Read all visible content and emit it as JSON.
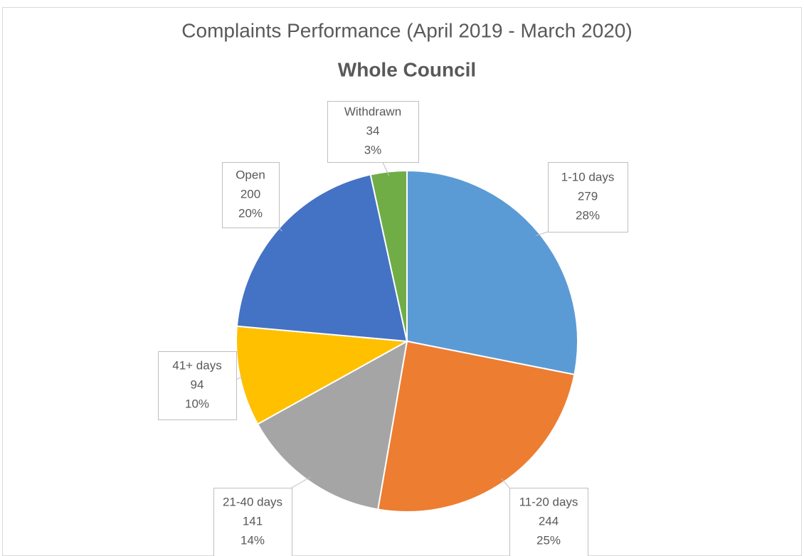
{
  "chart_data": {
    "type": "pie",
    "title": "Complaints Performance (April 2019 - March 2020)",
    "subtitle": "Whole Council",
    "categories": [
      "1-10 days",
      "11-20 days",
      "21-40 days",
      "41+ days",
      "Open",
      "Withdrawn"
    ],
    "values": [
      279,
      244,
      141,
      94,
      200,
      34
    ],
    "percent_labels": [
      "28%",
      "25%",
      "14%",
      "10%",
      "20%",
      "3%"
    ],
    "colors": [
      "#5B9BD5",
      "#ED7D31",
      "#A5A5A5",
      "#FFC000",
      "#4472C4",
      "#70AD47"
    ]
  }
}
